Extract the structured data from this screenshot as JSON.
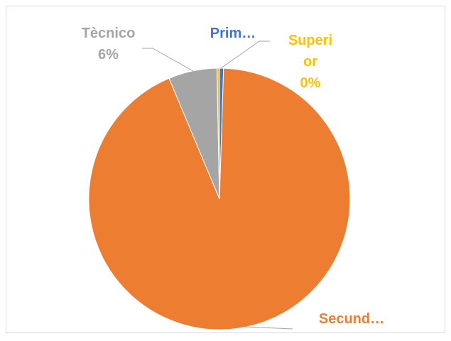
{
  "chart_data": {
    "type": "pie",
    "categories": [
      "Prim…",
      "Secund…",
      "Tècnico",
      "Superior"
    ],
    "values": [
      0.5,
      93.2,
      6,
      0.3
    ],
    "value_labels": [
      null,
      null,
      "6%",
      "0%"
    ],
    "colors": [
      "#4472c4",
      "#ed7d31",
      "#a5a5a5",
      "#ffc000"
    ]
  }
}
